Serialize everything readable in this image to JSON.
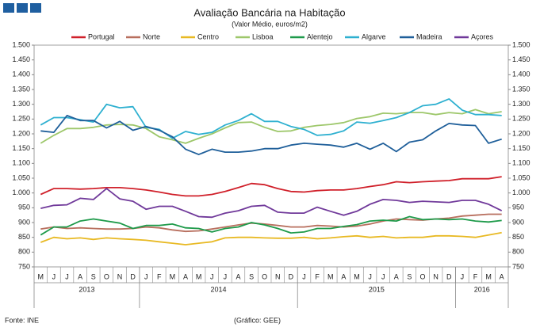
{
  "chart_data": {
    "type": "line",
    "title": "Avaliação Bancária na Habitação",
    "subtitle": "(Valor Médio, euros/m2)",
    "source": "Fonte: INE",
    "credit": "(Gráfico: GEE)",
    "categories": [
      "M",
      "J",
      "J",
      "A",
      "S",
      "O",
      "N",
      "D",
      "J",
      "F",
      "M",
      "A",
      "M",
      "J",
      "J",
      "A",
      "S",
      "O",
      "N",
      "D",
      "J",
      "F",
      "M",
      "A",
      "M",
      "J",
      "J",
      "A",
      "S",
      "O",
      "N",
      "D",
      "J",
      "F",
      "M",
      "A"
    ],
    "years": [
      "2013",
      "2014",
      "2015",
      "2016"
    ],
    "ylim": [
      750,
      1500
    ],
    "yticks": [
      {
        "value": 750,
        "label": "750"
      },
      {
        "value": 800,
        "label": "800"
      },
      {
        "value": 850,
        "label": "850"
      },
      {
        "value": 900,
        "label": "900"
      },
      {
        "value": 950,
        "label": "950"
      },
      {
        "value": 1000,
        "label": "1.000"
      },
      {
        "value": 1050,
        "label": "1.050"
      },
      {
        "value": 1100,
        "label": "1.100"
      },
      {
        "value": 1150,
        "label": "1.150"
      },
      {
        "value": 1200,
        "label": "1.200"
      },
      {
        "value": 1250,
        "label": "1.250"
      },
      {
        "value": 1300,
        "label": "1.300"
      },
      {
        "value": 1350,
        "label": "1.350"
      },
      {
        "value": 1400,
        "label": "1.400"
      },
      {
        "value": 1450,
        "label": "1.450"
      },
      {
        "value": 1500,
        "label": "1.500"
      }
    ],
    "y2lim": [
      750,
      1500
    ],
    "y2ticks": [
      {
        "value": 750,
        "label": "750"
      },
      {
        "value": 800,
        "label": "800"
      },
      {
        "value": 850,
        "label": "850"
      },
      {
        "value": 900,
        "label": "900"
      },
      {
        "value": 950,
        "label": "950"
      },
      {
        "value": 1000,
        "label": "1.000"
      },
      {
        "value": 1050,
        "label": "1.050"
      },
      {
        "value": 1100,
        "label": "1.100"
      },
      {
        "value": 1150,
        "label": "1.150"
      },
      {
        "value": 1200,
        "label": "1.200"
      },
      {
        "value": 1250,
        "label": "1.250"
      },
      {
        "value": 1300,
        "label": "1.300"
      },
      {
        "value": 1350,
        "label": "1.350"
      },
      {
        "value": 1400,
        "label": "1.400"
      },
      {
        "value": 1450,
        "label": "1.450"
      },
      {
        "value": 1500,
        "label": "1.500"
      }
    ],
    "grid": false,
    "series": [
      {
        "name": "Portugal",
        "color": "#d0202a",
        "values": [
          995,
          1015,
          1015,
          1013,
          1015,
          1018,
          1018,
          1015,
          1010,
          1003,
          995,
          990,
          990,
          995,
          1005,
          1018,
          1032,
          1028,
          1015,
          1005,
          1003,
          1008,
          1010,
          1010,
          1015,
          1022,
          1028,
          1038,
          1035,
          1038,
          1040,
          1042,
          1048,
          1048,
          1048,
          1055
        ]
      },
      {
        "name": "Norte",
        "color": "#b86f5e",
        "values": [
          878,
          885,
          880,
          882,
          880,
          878,
          878,
          880,
          885,
          882,
          875,
          870,
          872,
          878,
          885,
          892,
          898,
          895,
          890,
          885,
          885,
          890,
          888,
          885,
          888,
          895,
          905,
          912,
          910,
          908,
          912,
          915,
          922,
          925,
          928,
          928
        ]
      },
      {
        "name": "Centro",
        "color": "#e8b923",
        "values": [
          833,
          850,
          845,
          848,
          843,
          848,
          845,
          843,
          840,
          835,
          830,
          825,
          830,
          835,
          848,
          850,
          850,
          848,
          847,
          847,
          850,
          845,
          848,
          852,
          855,
          850,
          853,
          848,
          850,
          850,
          855,
          855,
          853,
          850,
          858,
          866
        ]
      },
      {
        "name": "Lisboa",
        "color": "#9dc76a",
        "values": [
          1168,
          1195,
          1218,
          1218,
          1222,
          1230,
          1232,
          1230,
          1218,
          1190,
          1180,
          1168,
          1185,
          1200,
          1220,
          1238,
          1240,
          1222,
          1208,
          1210,
          1222,
          1228,
          1232,
          1238,
          1252,
          1258,
          1270,
          1268,
          1272,
          1272,
          1265,
          1272,
          1268,
          1282,
          1268,
          1275
        ]
      },
      {
        "name": "Alentejo",
        "color": "#1e9a4a",
        "values": [
          858,
          885,
          885,
          905,
          912,
          905,
          898,
          880,
          890,
          890,
          895,
          882,
          880,
          868,
          880,
          885,
          900,
          892,
          880,
          865,
          868,
          880,
          880,
          887,
          893,
          905,
          908,
          905,
          920,
          910,
          912,
          910,
          912,
          905,
          902,
          907
        ]
      },
      {
        "name": "Algarve",
        "color": "#2eb0d0",
        "values": [
          1230,
          1255,
          1255,
          1248,
          1240,
          1300,
          1288,
          1292,
          1222,
          1215,
          1185,
          1208,
          1198,
          1205,
          1230,
          1245,
          1268,
          1242,
          1242,
          1225,
          1215,
          1195,
          1198,
          1210,
          1240,
          1236,
          1245,
          1255,
          1272,
          1295,
          1300,
          1318,
          1280,
          1265,
          1265,
          1262
        ]
      },
      {
        "name": "Madeira",
        "color": "#1f5f9a",
        "values": [
          1210,
          1205,
          1262,
          1245,
          1245,
          1220,
          1242,
          1212,
          1225,
          1212,
          1190,
          1148,
          1130,
          1148,
          1138,
          1138,
          1142,
          1150,
          1150,
          1162,
          1168,
          1165,
          1162,
          1155,
          1168,
          1148,
          1168,
          1140,
          1172,
          1180,
          1210,
          1235,
          1230,
          1228,
          1168,
          1182
        ]
      },
      {
        "name": "Açores",
        "color": "#70399a",
        "values": [
          948,
          958,
          960,
          982,
          978,
          1015,
          980,
          972,
          945,
          955,
          955,
          938,
          920,
          918,
          932,
          940,
          955,
          958,
          935,
          932,
          932,
          952,
          938,
          925,
          938,
          962,
          978,
          975,
          968,
          972,
          970,
          968,
          975,
          975,
          962,
          940
        ]
      }
    ]
  }
}
